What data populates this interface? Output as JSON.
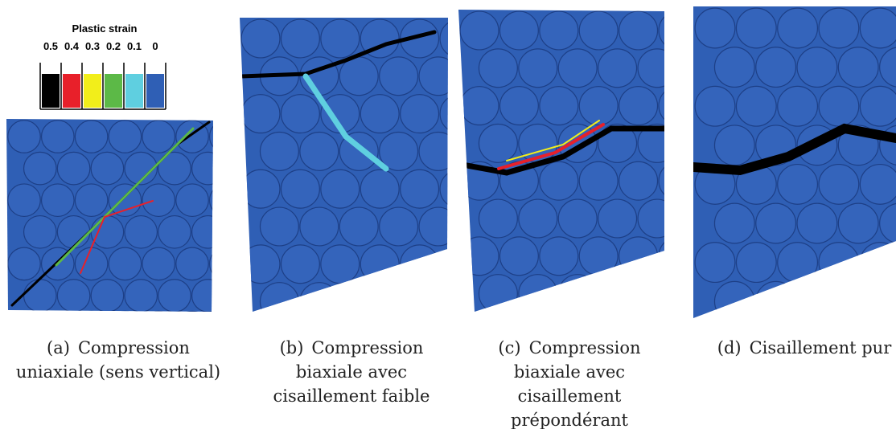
{
  "legend": {
    "title": "Plastic strain",
    "entries": [
      {
        "label": "0.5",
        "color": "#000000"
      },
      {
        "label": "0.4",
        "color": "#e8202a"
      },
      {
        "label": "0.3",
        "color": "#f2ee1a"
      },
      {
        "label": "0.2",
        "color": "#5cb947"
      },
      {
        "label": "0.1",
        "color": "#5fcfe0"
      },
      {
        "label": "0",
        "color": "#2f5fb5"
      }
    ]
  },
  "panels": [
    {
      "tag": "(a)",
      "lines": [
        "Compression",
        "uniaxiale (sens vertical)"
      ]
    },
    {
      "tag": "(b)",
      "lines": [
        "Compression",
        "biaxiale avec",
        "cisaillement faible"
      ]
    },
    {
      "tag": "(c)",
      "lines": [
        "Compression",
        "biaxiale avec",
        "cisaillement",
        "prépondérant"
      ]
    },
    {
      "tag": "(d)",
      "lines": [
        "Cisaillement pur"
      ]
    }
  ]
}
